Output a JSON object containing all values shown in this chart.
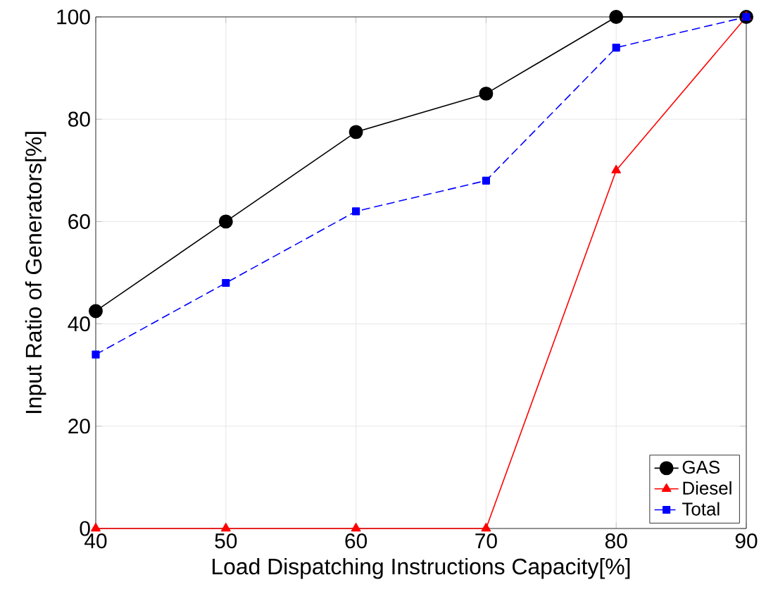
{
  "chart_data": {
    "type": "line",
    "xlabel": "Load Dispatching Instructions Capacity[%]",
    "ylabel": "Input Ratio of Generators[%]",
    "x": [
      40,
      50,
      60,
      70,
      80,
      90
    ],
    "series": [
      {
        "name": "GAS",
        "color": "#000000",
        "values": [
          42.5,
          60,
          77.5,
          85,
          100,
          100
        ],
        "marker": "circle",
        "line_style": "solid"
      },
      {
        "name": "Diesel",
        "color": "#ff0000",
        "values": [
          0,
          0,
          0,
          0,
          70,
          100
        ],
        "marker": "triangle",
        "line_style": "solid"
      },
      {
        "name": "Total",
        "color": "#0000ff",
        "values": [
          34,
          48,
          62,
          68,
          94,
          100
        ],
        "marker": "square",
        "line_style": "dashed"
      }
    ],
    "xlim": [
      40,
      90
    ],
    "xticks": [
      40,
      50,
      60,
      70,
      80,
      90
    ],
    "ylim": [
      0,
      100
    ],
    "yticks": [
      0,
      20,
      40,
      60,
      80,
      100
    ],
    "grid": true,
    "legend": "bottom right"
  }
}
